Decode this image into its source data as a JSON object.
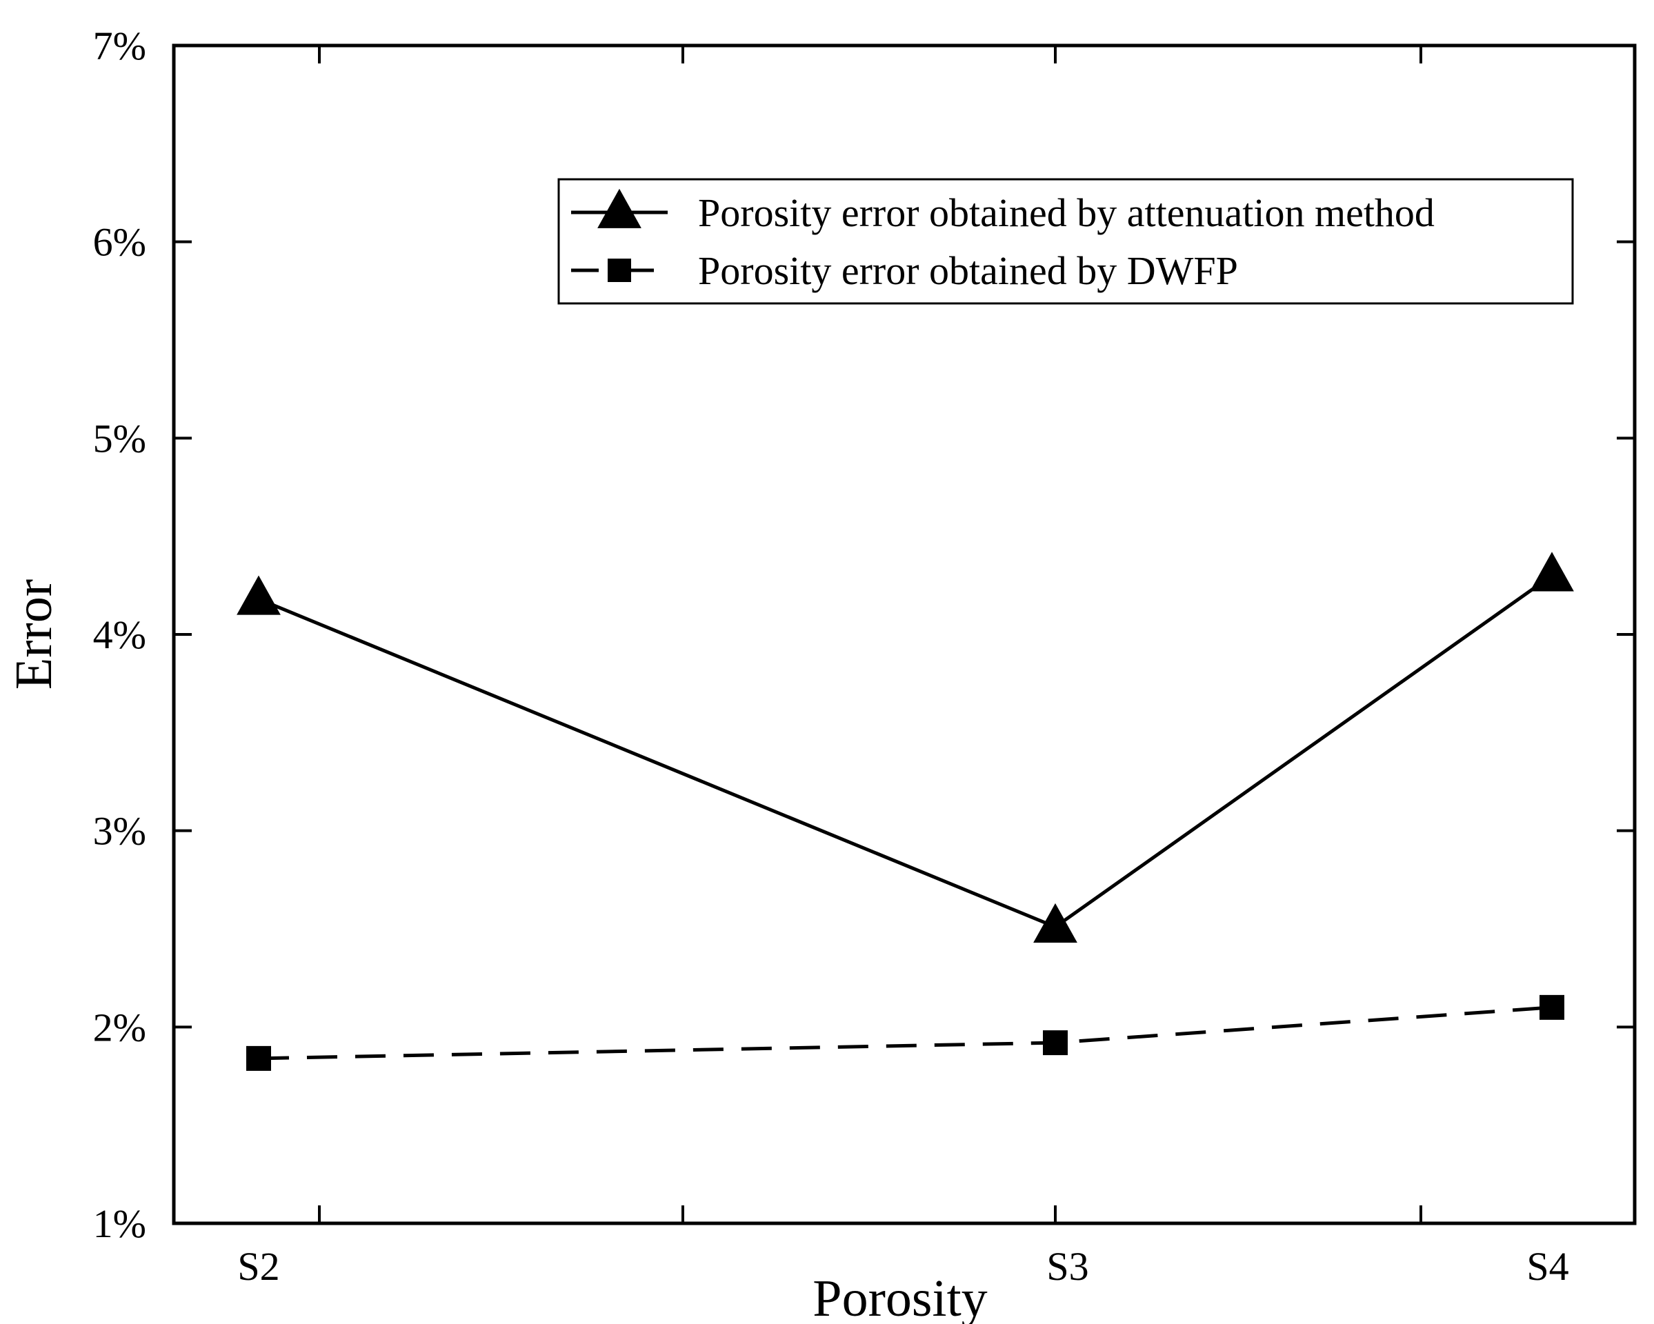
{
  "chart_data": {
    "type": "line",
    "title": "",
    "xlabel": "Porosity",
    "ylabel": "Error",
    "categories": [
      "S2",
      "S3",
      "S4"
    ],
    "ylim": [
      1,
      7
    ],
    "yticks": [
      1,
      2,
      3,
      4,
      5,
      6,
      7
    ],
    "ytick_labels": [
      "1%",
      "2%",
      "3%",
      "4%",
      "5%",
      "6%",
      "7%"
    ],
    "y_unit": "%",
    "grid": false,
    "legend_position": "top-right",
    "series": [
      {
        "name": "Porosity error obtained by attenuation method",
        "marker": "triangle",
        "line_style": "solid",
        "values": [
          4.18,
          2.51,
          4.3
        ]
      },
      {
        "name": "Porosity error obtained by DWFP",
        "marker": "square",
        "line_style": "dashed",
        "values": [
          1.84,
          1.92,
          2.1
        ]
      }
    ]
  },
  "colors": {
    "line": "#000000",
    "background": "#ffffff"
  }
}
